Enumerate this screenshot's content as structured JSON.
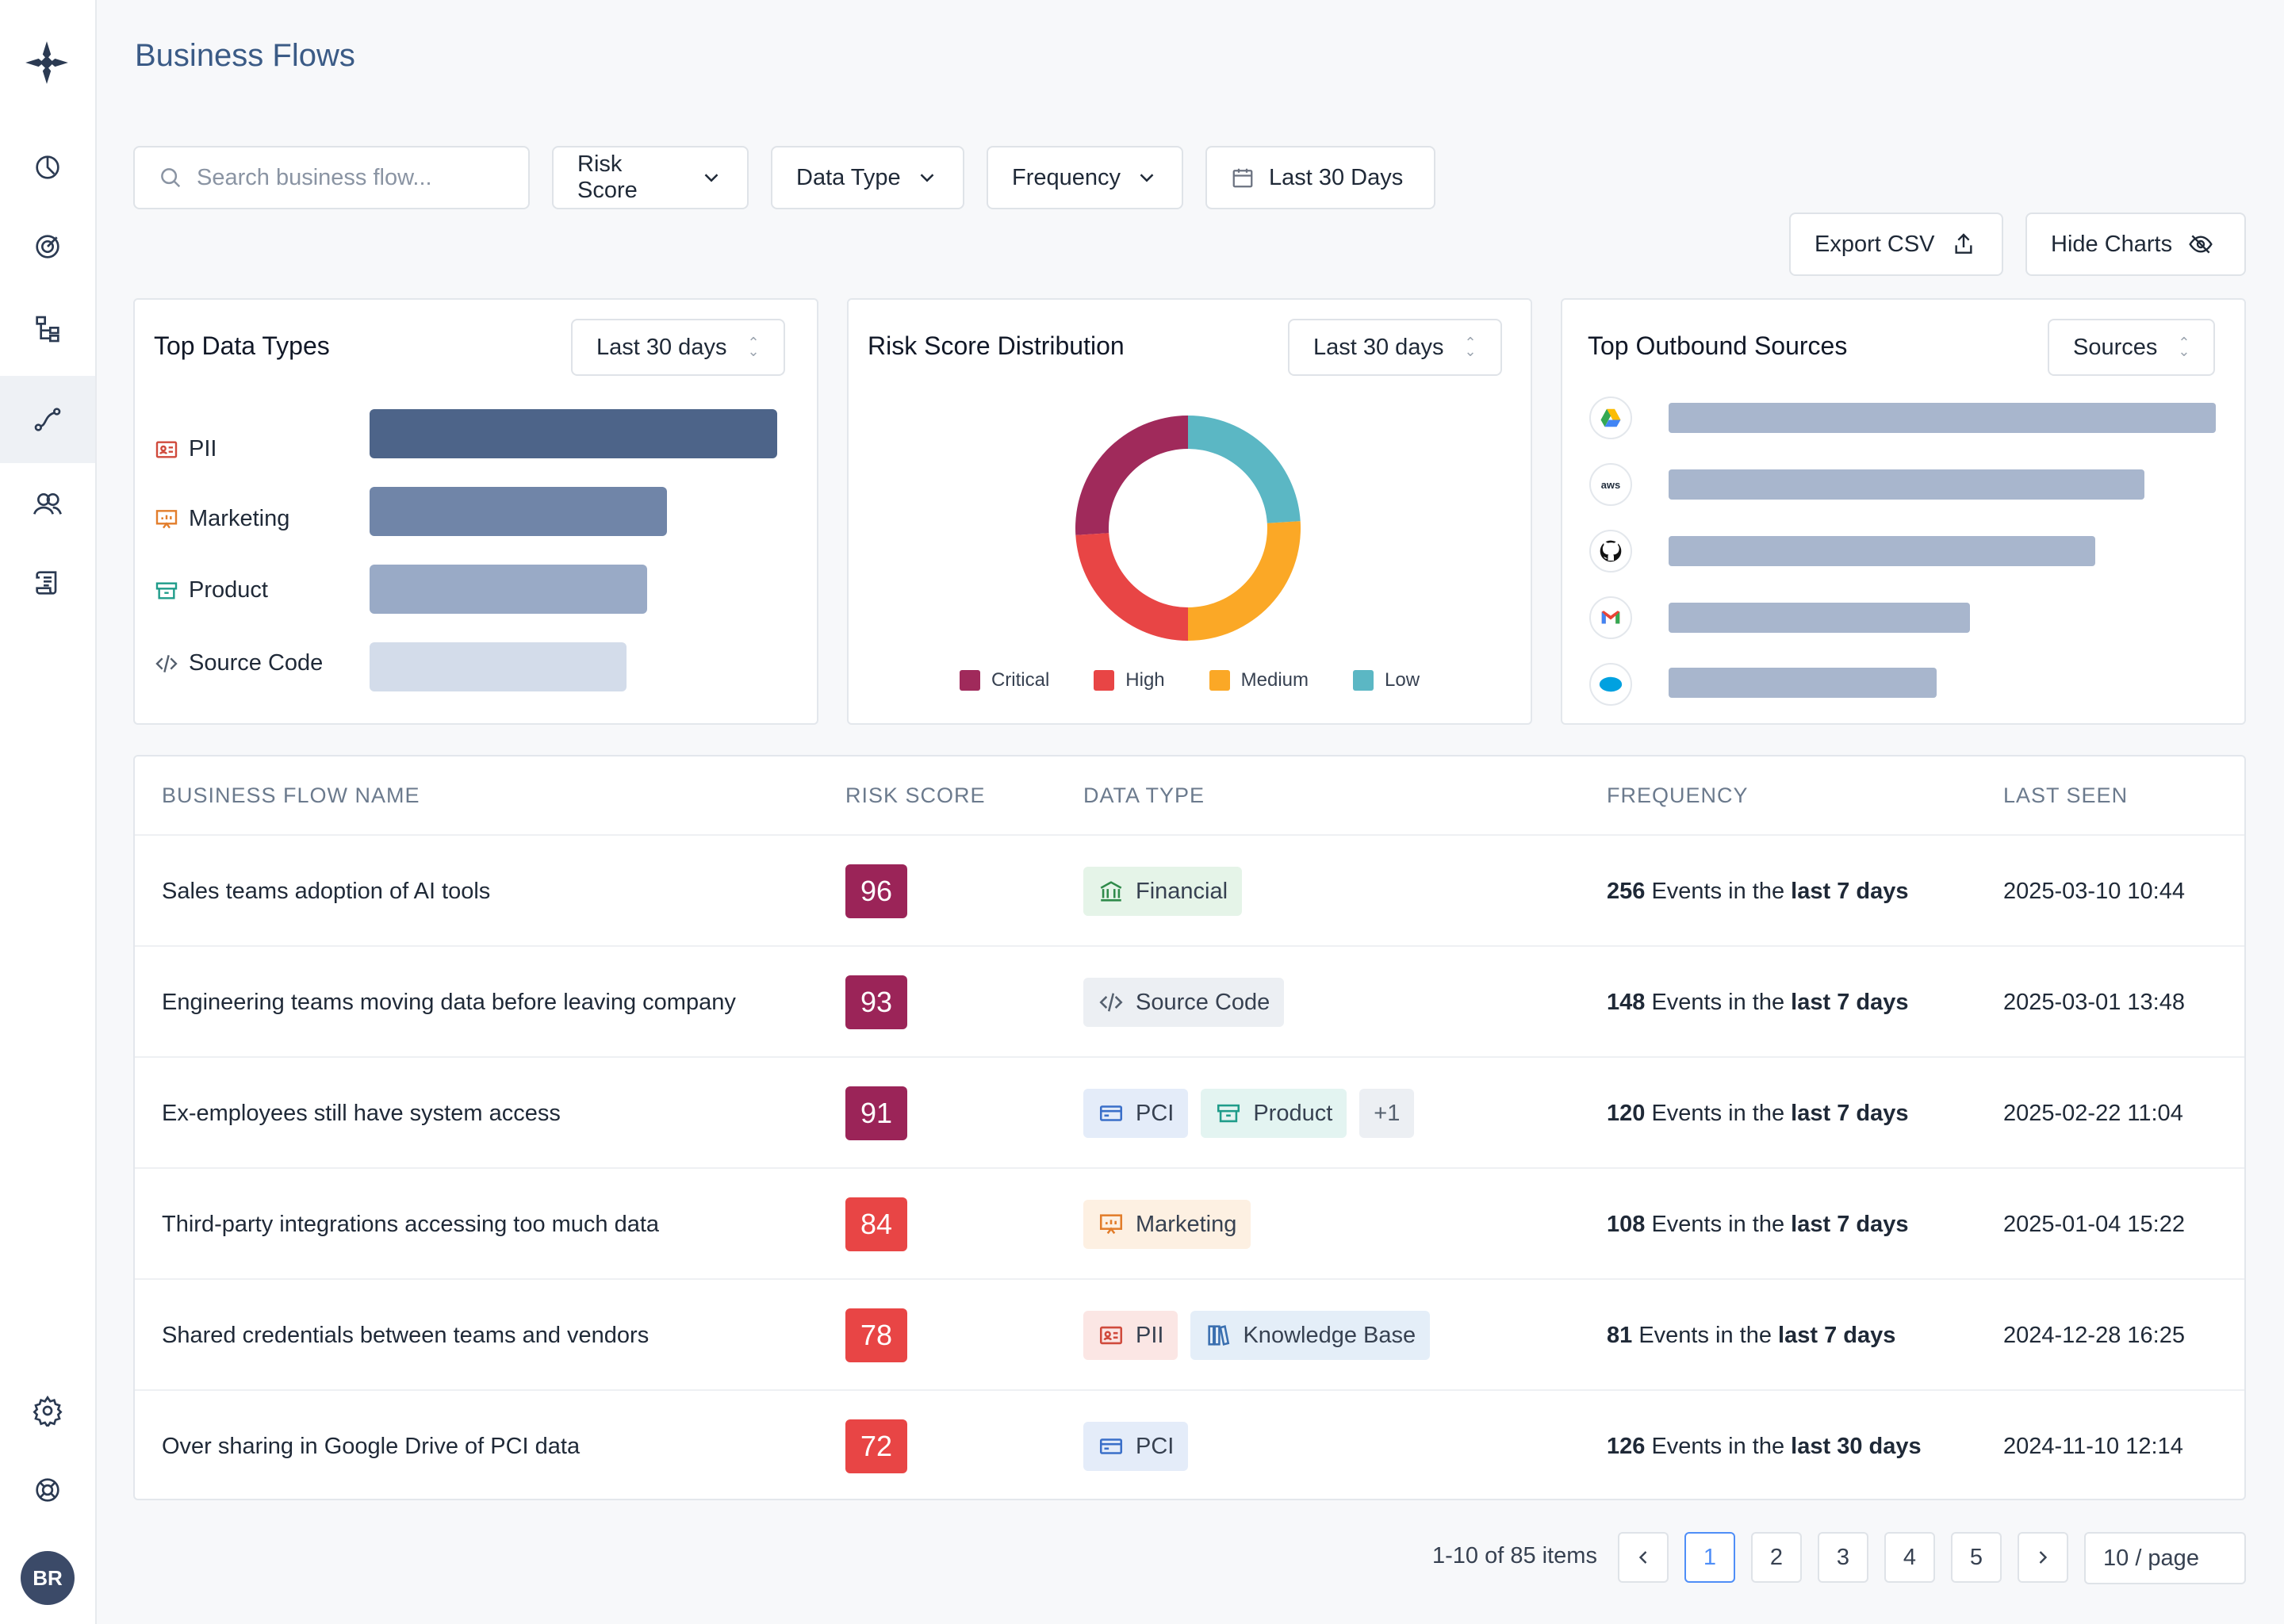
{
  "header": {
    "title": "Business Flows"
  },
  "filters": {
    "search_placeholder": "Search business flow...",
    "risk_score": "Risk Score",
    "data_type": "Data Type",
    "frequency": "Frequency",
    "date_range": "Last 30 Days"
  },
  "actions": {
    "export": "Export CSV",
    "hide_charts": "Hide Charts"
  },
  "sidebar": {
    "items": [
      "dashboard-icon",
      "target-icon",
      "hierarchy-icon",
      "flow-icon",
      "users-icon",
      "scroll-icon"
    ],
    "active_index": 3,
    "bottom": [
      "settings-icon",
      "help-icon"
    ],
    "avatar": "BR"
  },
  "cards": {
    "data_types": {
      "title": "Top Data Types",
      "range": "Last 30 days",
      "rows": [
        {
          "label": "PII",
          "icon": "id-card-icon",
          "relative": 1.0,
          "color": "#4d6489"
        },
        {
          "label": "Marketing",
          "icon": "presentation-icon",
          "relative": 0.73,
          "color": "#7085a8"
        },
        {
          "label": "Product",
          "icon": "archive-box-icon",
          "relative": 0.68,
          "color": "#99aac6"
        },
        {
          "label": "Source Code",
          "icon": "code-icon",
          "relative": 0.63,
          "color": "#d3dcea"
        }
      ]
    },
    "risk": {
      "title": "Risk Score Distribution",
      "range": "Last 30 days",
      "legend": [
        {
          "label": "Critical",
          "color": "#a02a5b"
        },
        {
          "label": "High",
          "color": "#e84545"
        },
        {
          "label": "Medium",
          "color": "#fba826"
        },
        {
          "label": "Low",
          "color": "#5bb7c4"
        }
      ]
    },
    "outbound": {
      "title": "Top Outbound Sources",
      "range": "Sources",
      "sources": [
        {
          "icon": "google-drive-icon",
          "relative": 1.0
        },
        {
          "icon": "aws-icon",
          "relative": 0.87
        },
        {
          "icon": "github-icon",
          "relative": 0.78
        },
        {
          "icon": "gmail-icon",
          "relative": 0.55
        },
        {
          "icon": "salesforce-icon",
          "relative": 0.49
        }
      ]
    }
  },
  "chart_data": {
    "type": "pie",
    "categories": [
      "Critical",
      "High",
      "Medium",
      "Low"
    ],
    "values": [
      26,
      24,
      26,
      24
    ],
    "title": "Risk Score Distribution"
  },
  "table": {
    "headers": [
      "BUSINESS FLOW NAME",
      "RISK SCORE",
      "DATA TYPE",
      "FREQUENCY",
      "LAST SEEN"
    ],
    "rows": [
      {
        "name": "Sales teams adoption of AI tools",
        "score": "96",
        "score_color": "#9b2458",
        "tags": [
          {
            "label": "Financial",
            "icon": "bank-icon",
            "bg": "#e5f4e8",
            "fg": "#2f8a4a"
          }
        ],
        "count": "256",
        "mid": " Events in the ",
        "period": "last 7 days",
        "seen": "2025-03-10 10:44"
      },
      {
        "name": "Engineering teams moving data before leaving company",
        "score": "93",
        "score_color": "#9b2458",
        "tags": [
          {
            "label": "Source Code",
            "icon": "code-icon",
            "bg": "#eceff3",
            "fg": "#55606e"
          }
        ],
        "count": "148",
        "mid": " Events in the ",
        "period": "last 7 days",
        "seen": "2025-03-01 13:48"
      },
      {
        "name": "Ex-employees still have system access",
        "score": "91",
        "score_color": "#9b2458",
        "tags": [
          {
            "label": "PCI",
            "icon": "card-icon",
            "bg": "#e4ecf9",
            "fg": "#3a6fc9"
          },
          {
            "label": "Product",
            "icon": "archive-box-icon",
            "bg": "#e3f4f1",
            "fg": "#1f9c8a"
          },
          {
            "label": "+1",
            "icon": "",
            "bg": "#eceff3",
            "fg": "#55606e"
          }
        ],
        "count": "120",
        "mid": " Events in the ",
        "period": "last 7 days",
        "seen": "2025-02-22 11:04"
      },
      {
        "name": "Third-party integrations accessing too much data",
        "score": "84",
        "score_color": "#e84545",
        "tags": [
          {
            "label": "Marketing",
            "icon": "presentation-icon",
            "bg": "#fdf0e2",
            "fg": "#e27d2b"
          }
        ],
        "count": "108",
        "mid": " Events in the ",
        "period": "last 7 days",
        "seen": "2025-01-04 15:22"
      },
      {
        "name": "Shared credentials between teams and vendors",
        "score": "78",
        "score_color": "#e84545",
        "tags": [
          {
            "label": "PII",
            "icon": "id-card-icon",
            "bg": "#fbe6e4",
            "fg": "#d04a3c"
          },
          {
            "label": "Knowledge Base",
            "icon": "books-icon",
            "bg": "#e4eef8",
            "fg": "#3a6fb0"
          }
        ],
        "count": "81",
        "mid": " Events in the ",
        "period": "last 7 days",
        "seen": "2024-12-28 16:25"
      },
      {
        "name": "Over sharing in Google Drive of PCI data",
        "score": "72",
        "score_color": "#e84545",
        "tags": [
          {
            "label": "PCI",
            "icon": "card-icon",
            "bg": "#e4ecf9",
            "fg": "#3a6fc9"
          }
        ],
        "count": "126",
        "mid": " Events in the ",
        "period": "last 30 days",
        "seen": "2024-11-10 12:14"
      }
    ]
  },
  "pagination": {
    "info": "1-10 of 85 items",
    "pages": [
      "1",
      "2",
      "3",
      "4",
      "5"
    ],
    "current": "1",
    "per_page": "10 / page"
  }
}
